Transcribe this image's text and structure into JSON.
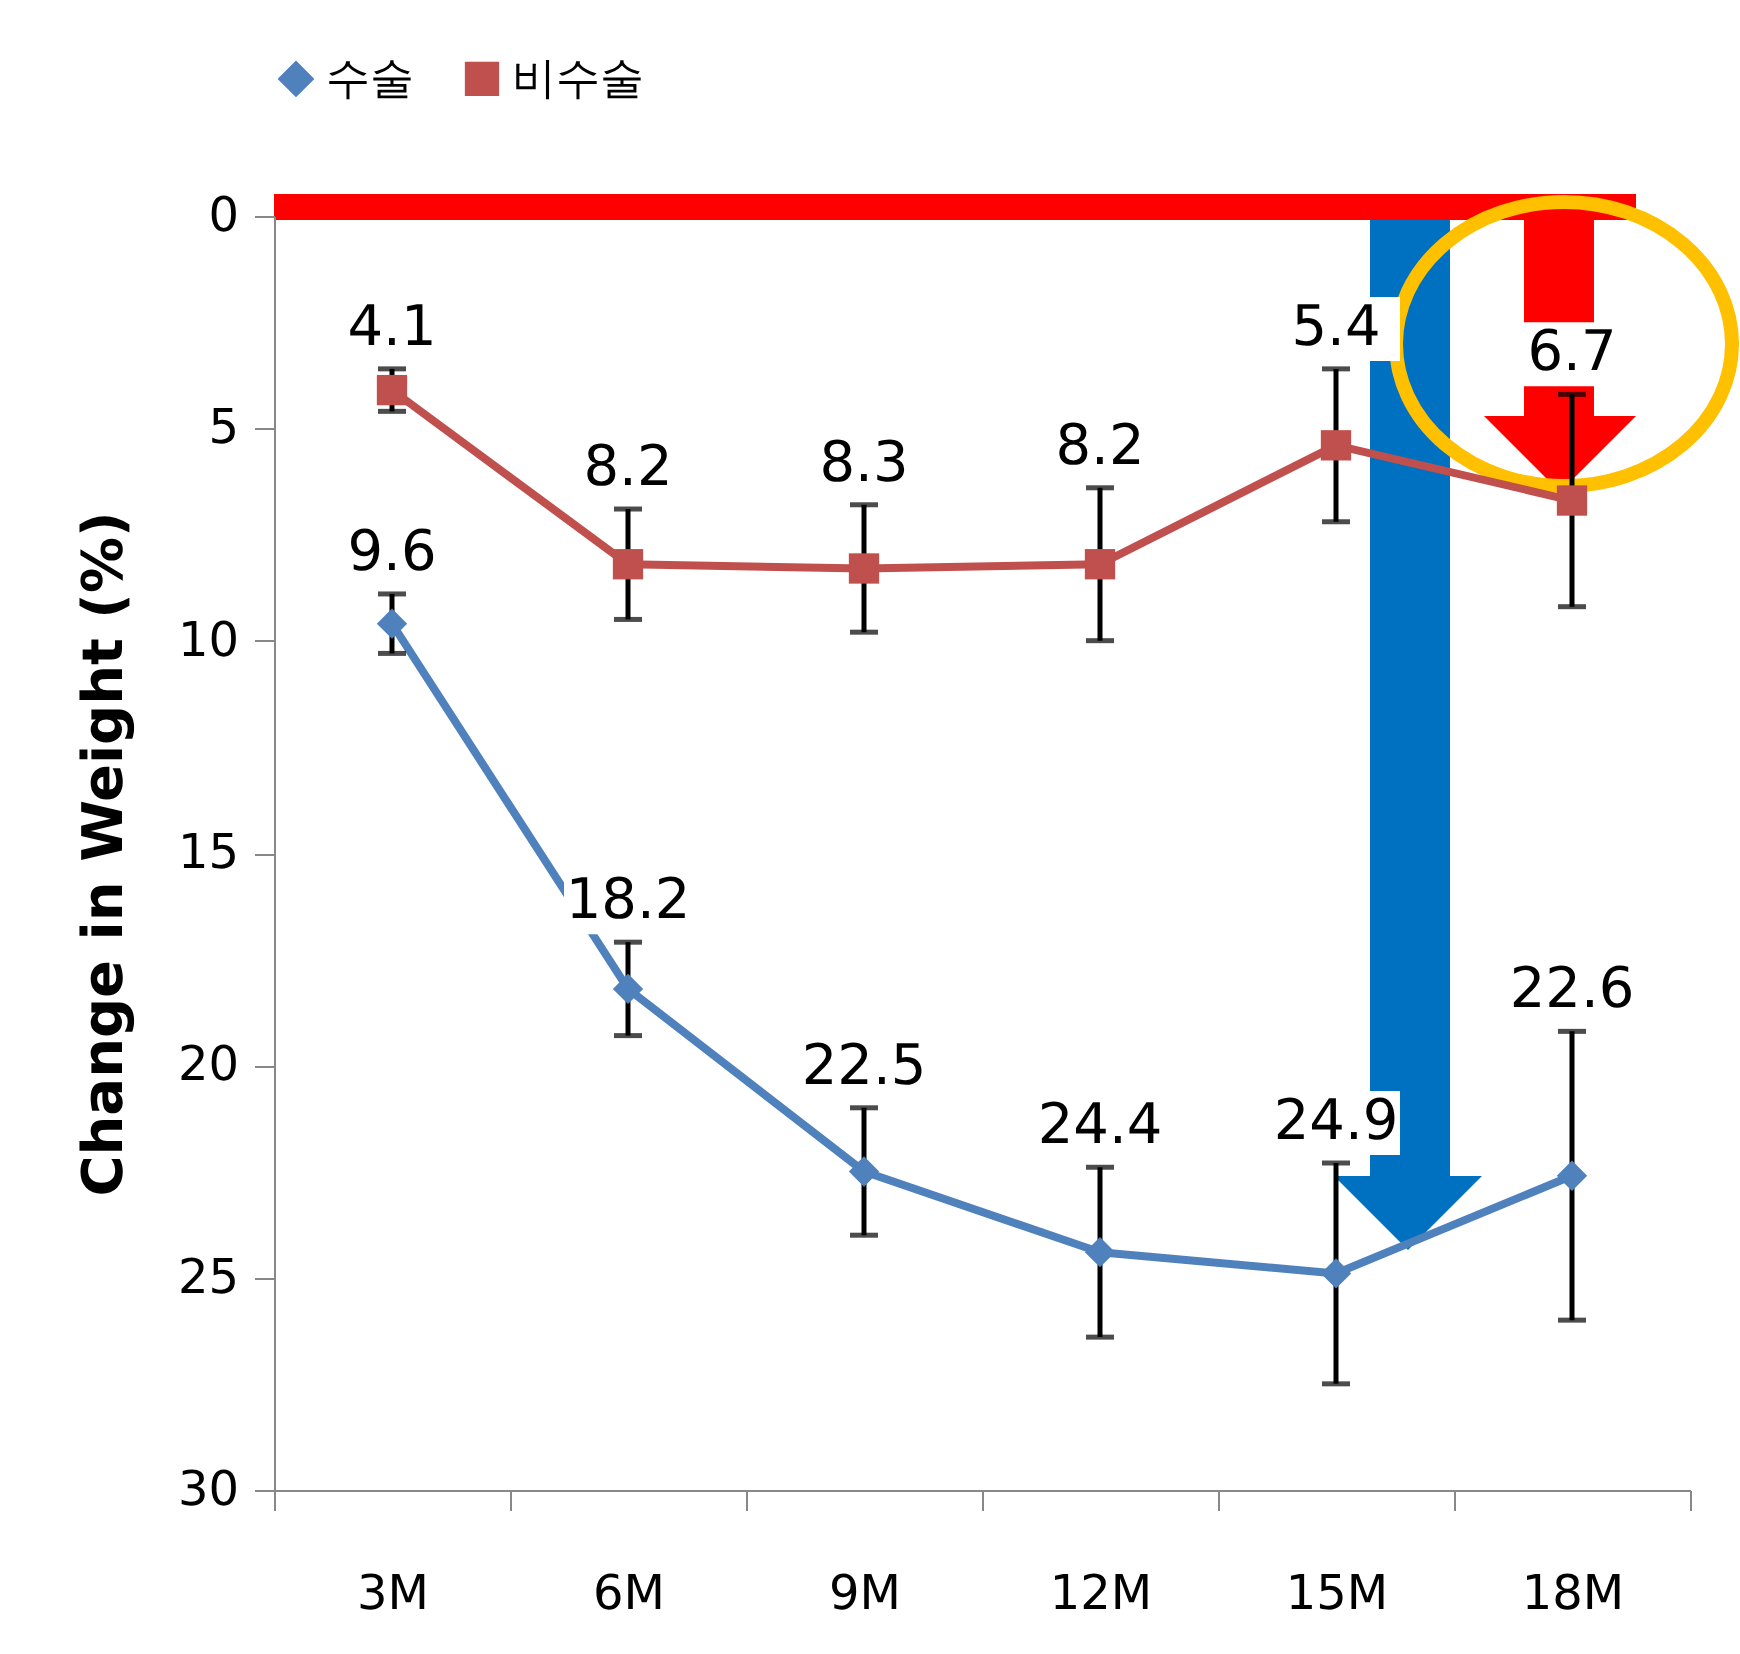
{
  "chart_data": {
    "type": "line",
    "ylabel": "Change in Weight (%)",
    "categories": [
      "3M",
      "6M",
      "9M",
      "12M",
      "15M",
      "18M"
    ],
    "series": [
      {
        "name": "수술",
        "color": "#4f81bd",
        "marker": "diamond",
        "values": [
          9.6,
          18.2,
          22.5,
          24.4,
          24.9,
          22.6
        ],
        "errors": [
          0.7,
          1.1,
          1.5,
          2.0,
          2.6,
          3.4
        ]
      },
      {
        "name": "비수술",
        "color": "#c0504d",
        "marker": "square",
        "values": [
          4.1,
          8.2,
          8.3,
          8.2,
          5.4,
          6.7
        ],
        "errors": [
          0.5,
          1.3,
          1.5,
          1.8,
          1.8,
          2.5
        ]
      }
    ],
    "ylim": [
      30,
      0
    ],
    "yticks": [
      0,
      5,
      10,
      15,
      20,
      25,
      30
    ],
    "data_labels": true,
    "legend": "top",
    "grid": false
  }
}
